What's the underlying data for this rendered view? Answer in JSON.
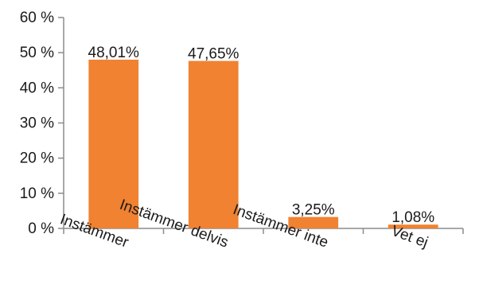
{
  "chart_data": {
    "type": "bar",
    "title": "",
    "xlabel": "",
    "ylabel": "",
    "categories": [
      "Instämmer",
      "Instämmer delvis",
      "Instämmer inte",
      "Vet ej"
    ],
    "values": [
      48.01,
      47.65,
      3.25,
      1.08
    ],
    "data_labels": [
      "48,01%",
      "47,65%",
      "3,25%",
      "1,08%"
    ],
    "y_ticks": [
      0,
      10,
      20,
      30,
      40,
      50,
      60
    ],
    "y_tick_labels": [
      "0 %",
      "10 %",
      "20 %",
      "30 %",
      "40 %",
      "50 %",
      "60 %"
    ],
    "ylim": [
      0,
      60
    ],
    "grid": false,
    "legend": "none",
    "bar_color": "#f08231",
    "axis_color": "#8c8c8c"
  }
}
